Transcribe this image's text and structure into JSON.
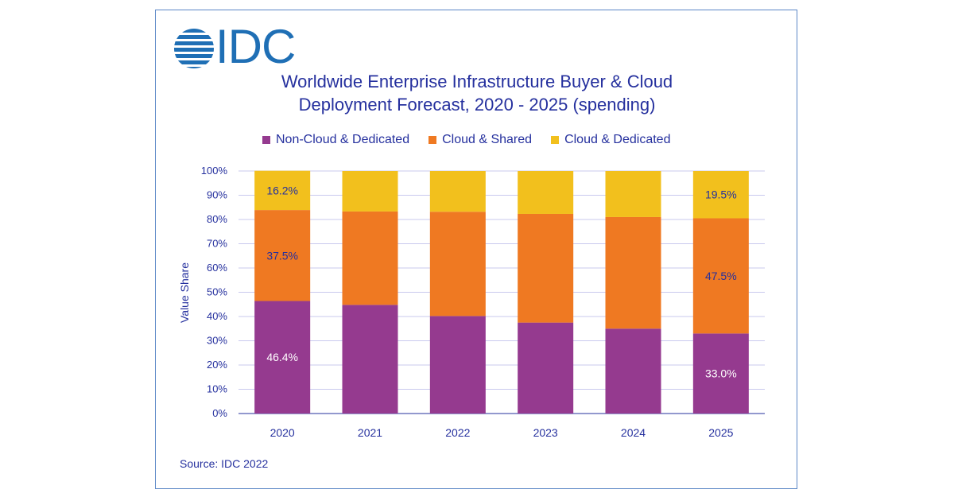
{
  "logo": {
    "text": "IDC",
    "color": "#1f6fb5"
  },
  "chart_data": {
    "type": "bar",
    "stacked": true,
    "title": "Worldwide Enterprise Infrastructure Buyer & Cloud Deployment Forecast, 2020 - 2025 (spending)",
    "title_lines": [
      "Worldwide Enterprise Infrastructure Buyer & Cloud",
      "Deployment Forecast, 2020 - 2025 (spending)"
    ],
    "xlabel": "",
    "ylabel": "Value  Share",
    "ylim": [
      0,
      100
    ],
    "yticks": [
      0,
      10,
      20,
      30,
      40,
      50,
      60,
      70,
      80,
      90,
      100
    ],
    "ytick_labels": [
      "0%",
      "10%",
      "20%",
      "30%",
      "40%",
      "50%",
      "60%",
      "70%",
      "80%",
      "90%",
      "100%"
    ],
    "categories": [
      "2020",
      "2021",
      "2022",
      "2023",
      "2024",
      "2025"
    ],
    "legend_position": "top",
    "grid": true,
    "series": [
      {
        "name": "Non-Cloud & Dedicated",
        "color": "#953a8f",
        "values": [
          46.4,
          44.8,
          40.2,
          37.5,
          35.0,
          33.0
        ],
        "labels": [
          "46.4%",
          "",
          "",
          "",
          "",
          "33.0%"
        ],
        "label_color": "#ffffff"
      },
      {
        "name": "Cloud & Shared",
        "color": "#ef7922",
        "values": [
          37.5,
          38.5,
          43.0,
          44.8,
          46.0,
          47.5
        ],
        "labels": [
          "37.5%",
          "",
          "",
          "",
          "",
          "47.5%"
        ],
        "label_color": "#25309e"
      },
      {
        "name": "Cloud & Dedicated",
        "color": "#f2c01d",
        "values": [
          16.2,
          16.7,
          16.8,
          17.7,
          19.0,
          19.5
        ],
        "labels": [
          "16.2%",
          "",
          "",
          "",
          "",
          "19.5%"
        ],
        "label_color": "#25309e"
      }
    ],
    "axis_color": "#25309e",
    "grid_color": "#c9c9ee"
  },
  "source": "Source: IDC 2022"
}
